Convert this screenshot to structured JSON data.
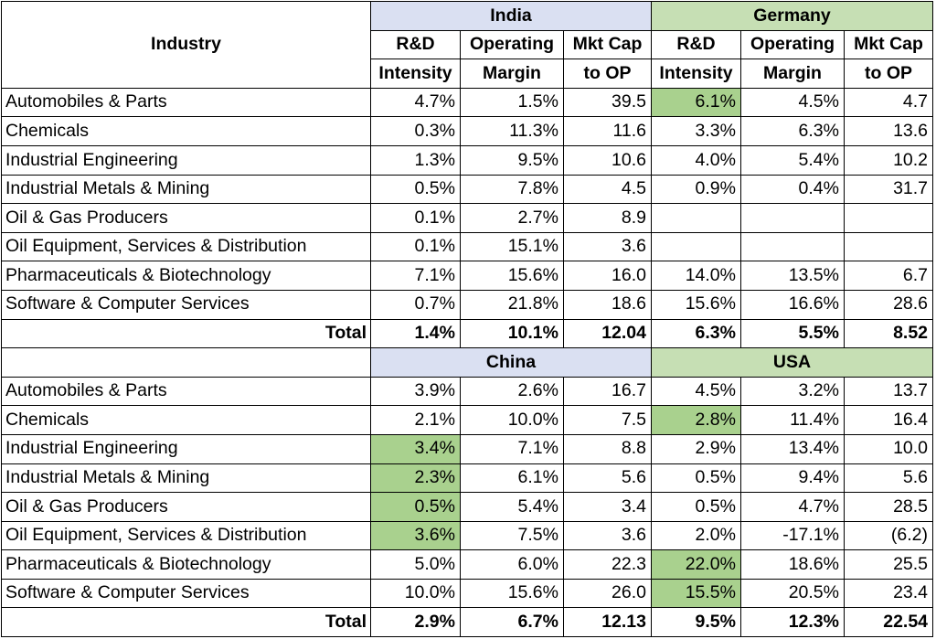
{
  "header": {
    "industry": "Industry",
    "total_label": "Total",
    "sub_line1": [
      "R&D",
      "Operating",
      "Mkt Cap",
      "R&D",
      "Operating",
      "Mkt Cap"
    ],
    "sub_line2": [
      "Intensity",
      "Margin",
      "to OP",
      "Intensity",
      "Margin",
      "to OP"
    ]
  },
  "colors": {
    "blue_header": "#dae0f2",
    "green_header": "#c6dfb4",
    "highlight": "#a9d18e"
  },
  "sections": [
    {
      "left_country": "India",
      "right_country": "Germany",
      "rows": [
        {
          "industry": "Automobiles & Parts",
          "values": [
            "4.7%",
            "1.5%",
            "39.5",
            "6.1%",
            "4.5%",
            "4.7"
          ],
          "highlight": [
            3
          ]
        },
        {
          "industry": "Chemicals",
          "values": [
            "0.3%",
            "11.3%",
            "11.6",
            "3.3%",
            "6.3%",
            "13.6"
          ],
          "highlight": []
        },
        {
          "industry": "Industrial Engineering",
          "values": [
            "1.3%",
            "9.5%",
            "10.6",
            "4.0%",
            "5.4%",
            "10.2"
          ],
          "highlight": []
        },
        {
          "industry": "Industrial Metals & Mining",
          "values": [
            "0.5%",
            "7.8%",
            "4.5",
            "0.9%",
            "0.4%",
            "31.7"
          ],
          "highlight": []
        },
        {
          "industry": "Oil & Gas Producers",
          "values": [
            "0.1%",
            "2.7%",
            "8.9",
            "",
            "",
            ""
          ],
          "highlight": []
        },
        {
          "industry": "Oil Equipment, Services & Distribution",
          "values": [
            "0.1%",
            "15.1%",
            "3.6",
            "",
            "",
            ""
          ],
          "highlight": []
        },
        {
          "industry": "Pharmaceuticals & Biotechnology",
          "values": [
            "7.1%",
            "15.6%",
            "16.0",
            "14.0%",
            "13.5%",
            "6.7"
          ],
          "highlight": []
        },
        {
          "industry": "Software & Computer Services",
          "values": [
            "0.7%",
            "21.8%",
            "18.6",
            "15.6%",
            "16.6%",
            "28.6"
          ],
          "highlight": []
        }
      ],
      "total": [
        "1.4%",
        "10.1%",
        "12.04",
        "6.3%",
        "5.5%",
        "8.52"
      ]
    },
    {
      "left_country": "China",
      "right_country": "USA",
      "rows": [
        {
          "industry": "Automobiles & Parts",
          "values": [
            "3.9%",
            "2.6%",
            "16.7",
            "4.5%",
            "3.2%",
            "13.7"
          ],
          "highlight": []
        },
        {
          "industry": "Chemicals",
          "values": [
            "2.1%",
            "10.0%",
            "7.5",
            "2.8%",
            "11.4%",
            "16.4"
          ],
          "highlight": [
            3
          ]
        },
        {
          "industry": "Industrial Engineering",
          "values": [
            "3.4%",
            "7.1%",
            "8.8",
            "2.9%",
            "13.4%",
            "10.0"
          ],
          "highlight": [
            0
          ]
        },
        {
          "industry": "Industrial Metals & Mining",
          "values": [
            "2.3%",
            "6.1%",
            "5.6",
            "0.5%",
            "9.4%",
            "5.6"
          ],
          "highlight": [
            0
          ]
        },
        {
          "industry": "Oil & Gas Producers",
          "values": [
            "0.5%",
            "5.4%",
            "3.4",
            "0.5%",
            "4.7%",
            "28.5"
          ],
          "highlight": [
            0
          ]
        },
        {
          "industry": "Oil Equipment, Services & Distribution",
          "values": [
            "3.6%",
            "7.5%",
            "3.6",
            "2.0%",
            "-17.1%",
            "(6.2)"
          ],
          "highlight": [
            0
          ]
        },
        {
          "industry": "Pharmaceuticals & Biotechnology",
          "values": [
            "5.0%",
            "6.0%",
            "22.3",
            "22.0%",
            "18.6%",
            "25.5"
          ],
          "highlight": [
            3
          ]
        },
        {
          "industry": "Software & Computer Services",
          "values": [
            "10.0%",
            "15.6%",
            "26.0",
            "15.5%",
            "20.5%",
            "23.4"
          ],
          "highlight": [
            3
          ]
        }
      ],
      "total": [
        "2.9%",
        "6.7%",
        "12.13",
        "9.5%",
        "12.3%",
        "22.54"
      ]
    }
  ]
}
